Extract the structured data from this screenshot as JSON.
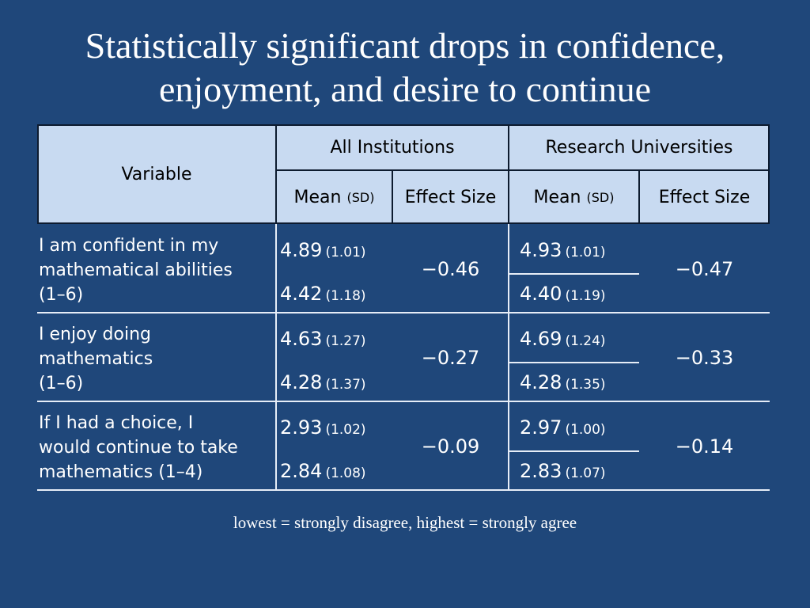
{
  "title": {
    "line1": "Statistically significant drops in confidence,",
    "line2": "enjoyment, and desire to continue"
  },
  "table": {
    "header": {
      "variable": "Variable",
      "all_institutions": "All Institutions",
      "research_universities": "Research Universities",
      "mean_label": "Mean",
      "sd_label": "(SD)",
      "effect_size_label": "Effect Size"
    },
    "rows": [
      {
        "label_lines": [
          "I am confident in my",
          "mathematical abilities",
          "(1–6)"
        ],
        "all": {
          "mean1": "4.89",
          "sd1": "(1.01)",
          "mean2": "4.42",
          "sd2": "(1.18)",
          "effect": "−0.46"
        },
        "research": {
          "mean1": "4.93",
          "sd1": "(1.01)",
          "mean2": "4.40",
          "sd2": "(1.19)",
          "effect": "−0.47"
        }
      },
      {
        "label_lines": [
          "I enjoy doing",
          "mathematics",
          "(1–6)"
        ],
        "all": {
          "mean1": "4.63",
          "sd1": "(1.27)",
          "mean2": "4.28",
          "sd2": "(1.37)",
          "effect": "−0.27"
        },
        "research": {
          "mean1": "4.69",
          "sd1": "(1.24)",
          "mean2": "4.28",
          "sd2": "(1.35)",
          "effect": "−0.33"
        }
      },
      {
        "label_lines": [
          "If I had a choice, I",
          "would continue to take",
          "mathematics (1–4)"
        ],
        "all": {
          "mean1": "2.93",
          "sd1": "(1.02)",
          "mean2": "2.84",
          "sd2": "(1.08)",
          "effect": "−0.09"
        },
        "research": {
          "mean1": "2.97",
          "sd1": "(1.00)",
          "mean2": "2.83",
          "sd2": "(1.07)",
          "effect": "−0.14"
        }
      }
    ]
  },
  "footnote": "lowest = strongly disagree, highest = strongly agree",
  "colors": {
    "background": "#1f477a",
    "header_fill": "#c8daf1",
    "text": "#ffffff"
  }
}
